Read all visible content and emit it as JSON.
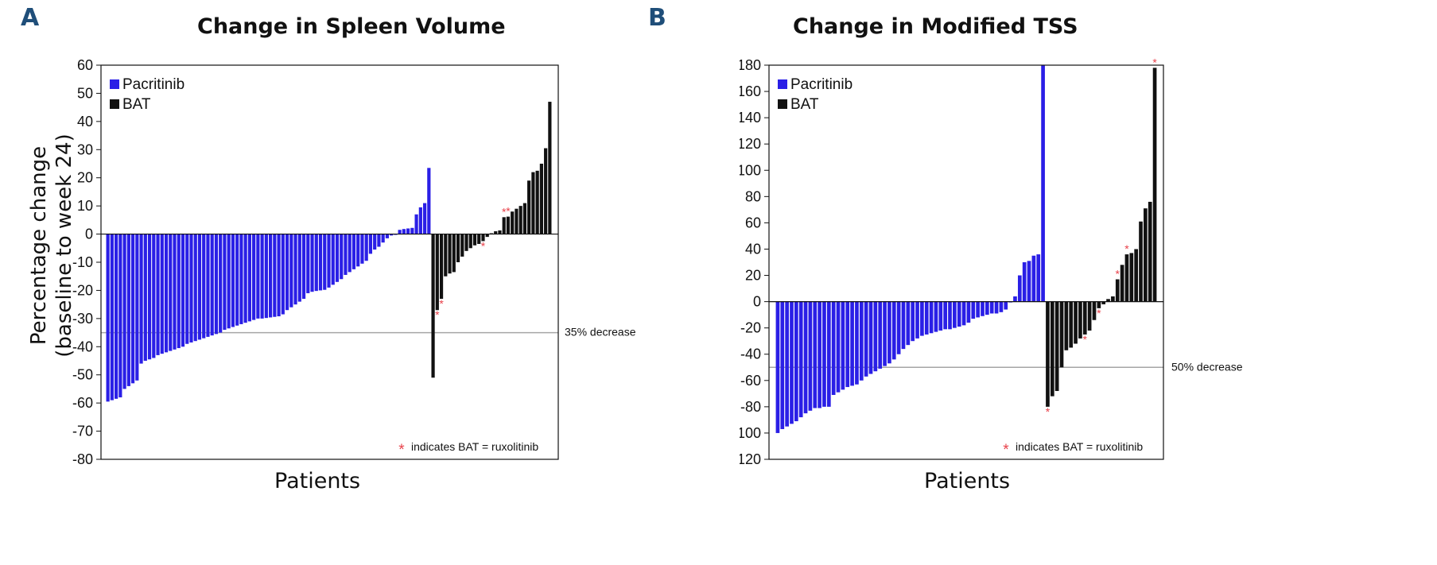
{
  "chart_data": [
    {
      "panel_letter": "A",
      "type": "bar",
      "title": "Change in Spleen Volume",
      "xlabel": "Patients",
      "ylabel_line1": "Percentage change",
      "ylabel_line2": "(baseline to week 24)",
      "ylim": [
        -80,
        60
      ],
      "yticks": [
        60,
        50,
        40,
        30,
        20,
        10,
        0,
        -10,
        -20,
        -30,
        -40,
        -50,
        -60,
        -70,
        -80
      ],
      "grid": false,
      "legend_position": "top-left",
      "series": [
        {
          "name": "Pacritinib",
          "color": "#2a1fe6",
          "values": [
            -59.5,
            -59,
            -58.5,
            -58,
            -55,
            -54,
            -53,
            -52,
            -46,
            -45,
            -44.5,
            -44,
            -43,
            -42.5,
            -42,
            -41.5,
            -41,
            -40.5,
            -40,
            -39,
            -38.5,
            -38,
            -37.5,
            -37,
            -36.5,
            -36,
            -35.5,
            -35,
            -34,
            -33.5,
            -33,
            -32.5,
            -32,
            -31.5,
            -31,
            -30.5,
            -30,
            -30,
            -29.8,
            -29.6,
            -29.4,
            -29.2,
            -28.5,
            -27,
            -26,
            -25,
            -24,
            -23,
            -21,
            -20.5,
            -20.2,
            -20,
            -19.8,
            -19,
            -18,
            -17,
            -16,
            -14.5,
            -13.5,
            -12.5,
            -11.5,
            -10.5,
            -9.5,
            -7,
            -5.5,
            -4.5,
            -3,
            -1.5,
            -0.5,
            0,
            1.5,
            1.8,
            2,
            2.2,
            7,
            9.5,
            11,
            23.5
          ],
          "ruxolitinib_marked": []
        },
        {
          "name": "BAT",
          "color": "#111111",
          "values": [
            -51,
            -27,
            -23,
            -15,
            -14,
            -13.5,
            -10,
            -8,
            -6,
            -5,
            -4,
            -3.5,
            -2.5,
            -1,
            0.3,
            1,
            1.3,
            6,
            6.2,
            8,
            9,
            10,
            11,
            19,
            22,
            22.5,
            25,
            30.5,
            47
          ],
          "ruxolitinib_marked": [
            1,
            2,
            12,
            17,
            18
          ]
        }
      ],
      "reference_line": {
        "value": -35,
        "label": "35% decrease"
      },
      "footnote": {
        "symbol": "*",
        "text": "indicates BAT = ruxolitinib"
      }
    },
    {
      "panel_letter": "B",
      "type": "bar",
      "title": "Change in Modified TSS",
      "xlabel": "Patients",
      "ylim": [
        -120,
        180
      ],
      "yticks": [
        180,
        160,
        140,
        120,
        100,
        80,
        60,
        40,
        20,
        0,
        -20,
        -40,
        -60,
        -80,
        -100,
        -120
      ],
      "grid": false,
      "legend_position": "top-left",
      "series": [
        {
          "name": "Pacritinib",
          "color": "#2a1fe6",
          "values": [
            -100,
            -97,
            -95,
            -93,
            -91,
            -88,
            -85,
            -83,
            -81,
            -81,
            -80,
            -80,
            -71,
            -69,
            -67,
            -65,
            -64,
            -63,
            -60,
            -57,
            -55,
            -53,
            -51,
            -49,
            -47,
            -44,
            -40,
            -36,
            -33,
            -30,
            -28,
            -26,
            -25,
            -24,
            -23,
            -22,
            -21,
            -21,
            -20,
            -19,
            -18,
            -16,
            -13,
            -12,
            -11,
            -10,
            -9,
            -9,
            -8,
            -6,
            0,
            4,
            20,
            30,
            31,
            35,
            36,
            185
          ],
          "ruxolitinib_marked": []
        },
        {
          "name": "BAT",
          "color": "#111111",
          "values": [
            -80,
            -72,
            -68,
            -50,
            -37,
            -35,
            -32,
            -28,
            -25,
            -22,
            -14,
            -5,
            -2,
            2,
            4,
            17,
            28,
            36,
            37,
            40,
            61,
            71,
            76,
            178
          ],
          "ruxolitinib_marked": [
            0,
            8,
            11,
            15,
            17,
            23
          ]
        }
      ],
      "reference_line": {
        "value": -50,
        "label": "50% decrease"
      },
      "footnote": {
        "symbol": "*",
        "text": "indicates BAT = ruxolitinib"
      }
    }
  ]
}
